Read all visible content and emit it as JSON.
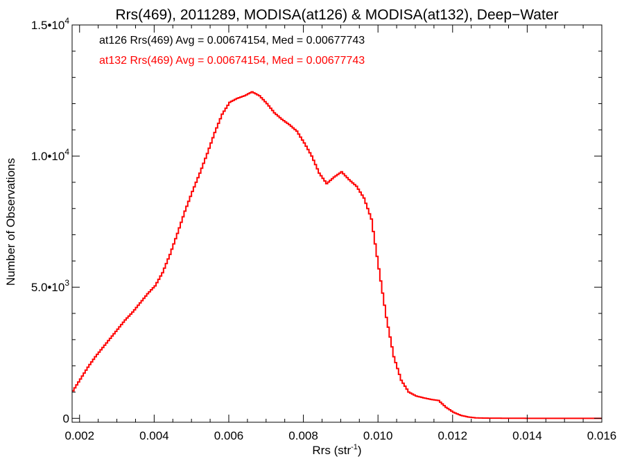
{
  "chart_data": {
    "type": "line",
    "title": "Rrs(469), 2011289, MODISA(at126) & MODISA(at132), Deep−Water",
    "xlabel_main": "Rrs (str",
    "xlabel_sup": "-1",
    "xlabel_end": ")",
    "ylabel": "Number of Observations",
    "xlim": [
      0.0018,
      0.016
    ],
    "ylim": [
      -150,
      15000
    ],
    "x_ticks": [
      {
        "value": 0.002,
        "label": "0.002"
      },
      {
        "value": 0.004,
        "label": "0.004"
      },
      {
        "value": 0.006,
        "label": "0.006"
      },
      {
        "value": 0.008,
        "label": "0.008"
      },
      {
        "value": 0.01,
        "label": "0.010"
      },
      {
        "value": 0.012,
        "label": "0.012"
      },
      {
        "value": 0.014,
        "label": "0.014"
      },
      {
        "value": 0.016,
        "label": "0.016"
      }
    ],
    "y_ticks": [
      {
        "value": 0,
        "mantissa": "0",
        "exponent": ""
      },
      {
        "value": 5000,
        "mantissa": "5.0•10",
        "exponent": "3"
      },
      {
        "value": 10000,
        "mantissa": "1.0•10",
        "exponent": "4"
      },
      {
        "value": 15000,
        "mantissa": "1.5•10",
        "exponent": "4"
      }
    ],
    "legend": [
      {
        "text": "at126 Rrs(469) Avg = 0.00674154, Med = 0.00677743",
        "color": "#000000"
      },
      {
        "text": "at132 Rrs(469) Avg = 0.00674154, Med = 0.00677743",
        "color": "#ff0000"
      }
    ],
    "series": [
      {
        "color": "#ff0000",
        "step": true,
        "points": [
          [
            0.0018,
            1050
          ],
          [
            0.002,
            1500
          ],
          [
            0.0022,
            1950
          ],
          [
            0.0024,
            2350
          ],
          [
            0.0026,
            2700
          ],
          [
            0.0028,
            3050
          ],
          [
            0.003,
            3400
          ],
          [
            0.0032,
            3750
          ],
          [
            0.0034,
            4050
          ],
          [
            0.0036,
            4400
          ],
          [
            0.0038,
            4750
          ],
          [
            0.004,
            5050
          ],
          [
            0.0042,
            5550
          ],
          [
            0.0044,
            6250
          ],
          [
            0.0046,
            7050
          ],
          [
            0.0048,
            7900
          ],
          [
            0.005,
            8650
          ],
          [
            0.0052,
            9350
          ],
          [
            0.0054,
            10100
          ],
          [
            0.0056,
            10900
          ],
          [
            0.0058,
            11600
          ],
          [
            0.006,
            12050
          ],
          [
            0.0062,
            12200
          ],
          [
            0.0064,
            12300
          ],
          [
            0.0066,
            12450
          ],
          [
            0.0068,
            12300
          ],
          [
            0.007,
            12000
          ],
          [
            0.0072,
            11650
          ],
          [
            0.0074,
            11400
          ],
          [
            0.0076,
            11200
          ],
          [
            0.0078,
            10950
          ],
          [
            0.008,
            10500
          ],
          [
            0.0082,
            10000
          ],
          [
            0.0084,
            9350
          ],
          [
            0.0086,
            8950
          ],
          [
            0.0088,
            9200
          ],
          [
            0.009,
            9400
          ],
          [
            0.0092,
            9100
          ],
          [
            0.0094,
            8850
          ],
          [
            0.0096,
            8400
          ],
          [
            0.0098,
            7600
          ],
          [
            0.01,
            5700
          ],
          [
            0.0102,
            3850
          ],
          [
            0.0104,
            2350
          ],
          [
            0.0106,
            1450
          ],
          [
            0.0108,
            1000
          ],
          [
            0.011,
            850
          ],
          [
            0.0112,
            780
          ],
          [
            0.0114,
            720
          ],
          [
            0.0116,
            680
          ],
          [
            0.0118,
            420
          ],
          [
            0.012,
            230
          ],
          [
            0.0122,
            110
          ],
          [
            0.0124,
            50
          ],
          [
            0.0126,
            15
          ],
          [
            0.013,
            5
          ],
          [
            0.014,
            0
          ],
          [
            0.015,
            0
          ],
          [
            0.016,
            0
          ]
        ]
      }
    ]
  }
}
